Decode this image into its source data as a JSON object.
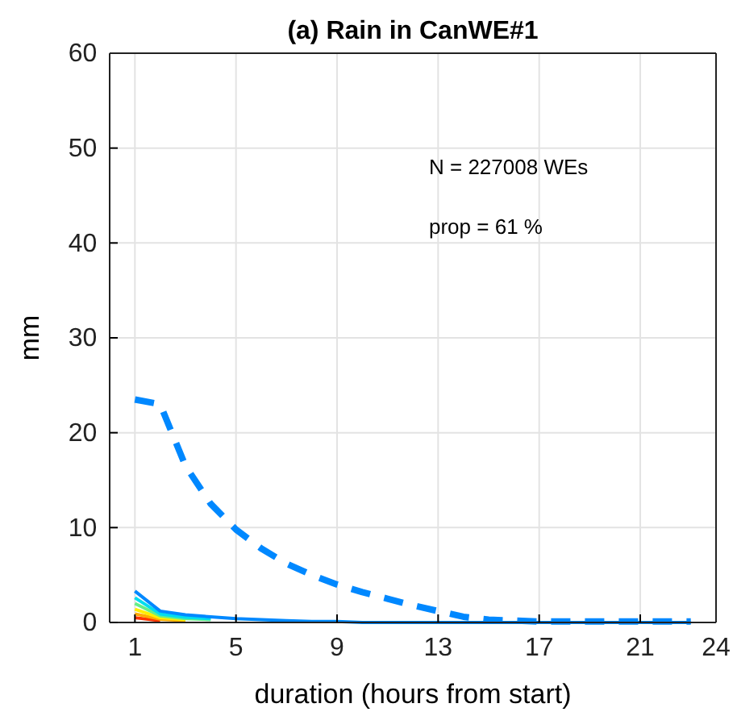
{
  "chart_data": {
    "type": "line",
    "title": "(a) Rain in CanWE#1",
    "xlabel": "duration (hours from start)",
    "ylabel": "mm",
    "x": [
      1,
      2,
      3,
      4,
      5,
      6,
      7,
      8,
      9,
      10,
      11,
      12,
      13,
      14,
      15,
      16,
      17,
      18,
      19,
      20,
      21,
      22,
      23
    ],
    "xlim": [
      0,
      24
    ],
    "xticks": [
      1,
      5,
      9,
      13,
      17,
      21,
      24
    ],
    "ylim": [
      0,
      60
    ],
    "yticks": [
      0,
      10,
      20,
      30,
      40,
      50,
      60
    ],
    "grid": true,
    "marker": "none",
    "annotations": [
      "N = 227008 WEs",
      "prop = 61 %"
    ],
    "series": [
      {
        "color": "#ff3300",
        "values": [
          0.5,
          0.2,
          null,
          null,
          null,
          null,
          null,
          null,
          null,
          null,
          null,
          null,
          null,
          null,
          null,
          null,
          null,
          null,
          null,
          null,
          null,
          null,
          null
        ]
      },
      {
        "color": "#ffaa00",
        "values": [
          0.9,
          0.35,
          0.2,
          null,
          null,
          null,
          null,
          null,
          null,
          null,
          null,
          null,
          null,
          null,
          null,
          null,
          null,
          null,
          null,
          null,
          null,
          null,
          null
        ]
      },
      {
        "color": "#ffee00",
        "values": [
          1.4,
          0.5,
          0.3,
          null,
          null,
          null,
          null,
          null,
          null,
          null,
          null,
          null,
          null,
          null,
          null,
          null,
          null,
          null,
          null,
          null,
          null,
          null,
          null
        ]
      },
      {
        "color": "#66ee88",
        "values": [
          2,
          0.7,
          0.4,
          0.3,
          null,
          null,
          null,
          null,
          null,
          null,
          null,
          null,
          null,
          null,
          null,
          null,
          null,
          null,
          null,
          null,
          null,
          null,
          null
        ]
      },
      {
        "color": "#00ddee",
        "values": [
          2.6,
          0.9,
          0.55,
          0.4,
          null,
          null,
          null,
          null,
          null,
          null,
          null,
          null,
          null,
          null,
          null,
          null,
          null,
          null,
          null,
          null,
          null,
          null,
          null
        ]
      },
      {
        "color": "#0088ff",
        "values": [
          3.3,
          1.2,
          0.8,
          0.6,
          0.4,
          0.3,
          0.2,
          0.1,
          0.1,
          0,
          0,
          0,
          0,
          0,
          0,
          0,
          0,
          0,
          0,
          0,
          0,
          0,
          0
        ]
      },
      {
        "color": "#0088ff",
        "line_style": "dashed",
        "values": [
          23.5,
          23,
          16.5,
          12.5,
          9.8,
          7.8,
          6.2,
          5,
          4,
          3.2,
          2.5,
          1.8,
          1.2,
          0.6,
          0.3,
          0.2,
          0.1,
          0.1,
          0.1,
          0.1,
          0.1,
          0.1,
          0.1
        ]
      }
    ]
  }
}
